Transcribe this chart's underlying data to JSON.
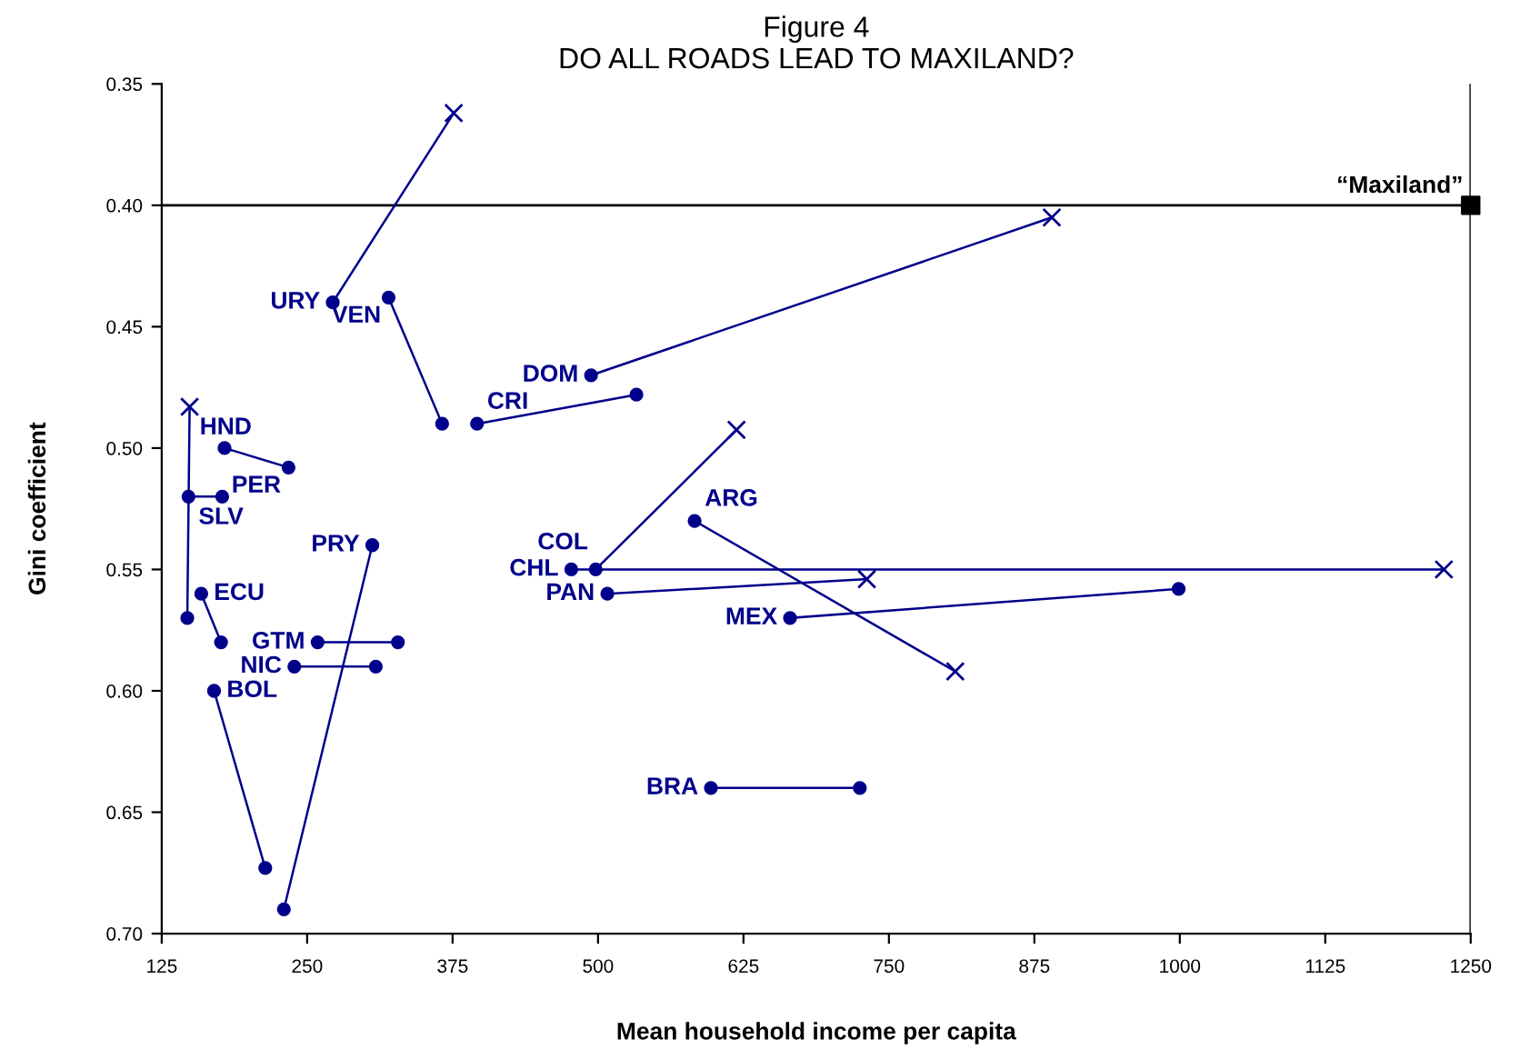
{
  "chart_data": {
    "type": "line",
    "title": "Figure 4",
    "subtitle": "DO ALL ROADS LEAD TO MAXILAND?",
    "xlabel": "Mean household income per capita",
    "ylabel": "Gini coefficient",
    "xlim": [
      125,
      1250
    ],
    "xticks": [
      125,
      250,
      375,
      500,
      625,
      750,
      875,
      1000,
      1125,
      1250
    ],
    "ylim": [
      0.7,
      0.35
    ],
    "yticks": [
      {
        "value": 0.35,
        "label": "0.35"
      },
      {
        "value": 0.4,
        "label": "0.40"
      },
      {
        "value": 0.45,
        "label": "0.45"
      },
      {
        "value": 0.5,
        "label": "0.50"
      },
      {
        "value": 0.55,
        "label": "0.55"
      },
      {
        "value": 0.6,
        "label": "0.60"
      },
      {
        "value": 0.65,
        "label": "0.65"
      },
      {
        "value": 0.7,
        "label": "0.70"
      }
    ],
    "grid": false,
    "legend": false,
    "line_style": "solid",
    "ref_lines": [
      {
        "axis": "y",
        "value": 0.4,
        "color": "#000000"
      },
      {
        "axis": "x",
        "value": 1250,
        "color": "#000000"
      }
    ],
    "series": [
      {
        "name": "URY",
        "color": "#00008b",
        "marker": "circle",
        "x": [
          272,
          376
        ],
        "values": [
          0.44,
          0.362
        ]
      },
      {
        "name": "VEN",
        "color": "#00008b",
        "marker": "circle",
        "x": [
          320,
          366
        ],
        "values": [
          0.438,
          0.49
        ]
      },
      {
        "name": "CRI",
        "color": "#00008b",
        "marker": "circle",
        "x": [
          396,
          533
        ],
        "values": [
          0.49,
          0.478
        ]
      },
      {
        "name": "DOM",
        "color": "#00008b",
        "marker": "circle",
        "x": [
          494,
          890
        ],
        "values": [
          0.47,
          0.405
        ]
      },
      {
        "name": "PER",
        "color": "#00008b",
        "marker": "circle",
        "x": [
          179,
          234
        ],
        "values": [
          0.5,
          0.508
        ]
      },
      {
        "name": "SLV",
        "color": "#00008b",
        "marker": "circle",
        "x": [
          148,
          177
        ],
        "values": [
          0.52,
          0.52
        ]
      },
      {
        "name": "HND",
        "color": "#00008b",
        "marker": "circle",
        "x": [
          147,
          149
        ],
        "values": [
          0.57,
          0.483
        ]
      },
      {
        "name": "ECU",
        "color": "#00008b",
        "marker": "circle",
        "x": [
          159,
          176
        ],
        "values": [
          0.56,
          0.58
        ]
      },
      {
        "name": "BOL",
        "color": "#00008b",
        "marker": "circle",
        "x": [
          170,
          214
        ],
        "values": [
          0.6,
          0.673
        ]
      },
      {
        "name": "PRY",
        "color": "#00008b",
        "marker": "circle",
        "x": [
          306,
          230
        ],
        "values": [
          0.54,
          0.69
        ]
      },
      {
        "name": "GTM",
        "color": "#00008b",
        "marker": "circle",
        "x": [
          259,
          328
        ],
        "values": [
          0.58,
          0.58
        ]
      },
      {
        "name": "NIC",
        "color": "#00008b",
        "marker": "circle",
        "x": [
          239,
          309
        ],
        "values": [
          0.59,
          0.59
        ]
      },
      {
        "name": "CHL",
        "color": "#00008b",
        "marker": "circle",
        "x": [
          477,
          1227
        ],
        "values": [
          0.55,
          0.55
        ]
      },
      {
        "name": "COL",
        "color": "#00008b",
        "marker": "circle",
        "x": [
          498,
          619
        ],
        "values": [
          0.55,
          0.4925
        ]
      },
      {
        "name": "PAN",
        "color": "#00008b",
        "marker": "circle",
        "x": [
          508,
          731
        ],
        "values": [
          0.56,
          0.554
        ]
      },
      {
        "name": "ARG",
        "color": "#00008b",
        "marker": "circle",
        "x": [
          583,
          807
        ],
        "values": [
          0.53,
          0.592
        ]
      },
      {
        "name": "MEX",
        "color": "#00008b",
        "marker": "circle",
        "x": [
          665,
          999
        ],
        "values": [
          0.57,
          0.558
        ]
      },
      {
        "name": "BRA",
        "color": "#00008b",
        "marker": "circle",
        "x": [
          597,
          725
        ],
        "values": [
          0.64,
          0.64
        ]
      },
      {
        "type": "scatter",
        "color": "#00008b",
        "marker": "cross",
        "x": [
          376,
          890,
          149,
          1227,
          619,
          731,
          807
        ],
        "values": [
          0.362,
          0.405,
          0.483,
          0.55,
          0.4925,
          0.554,
          0.592
        ]
      },
      {
        "name": "“Maxiland”",
        "type": "scatter",
        "color": "#000000",
        "marker": "square",
        "x": [
          1250
        ],
        "values": [
          0.4
        ]
      }
    ]
  }
}
